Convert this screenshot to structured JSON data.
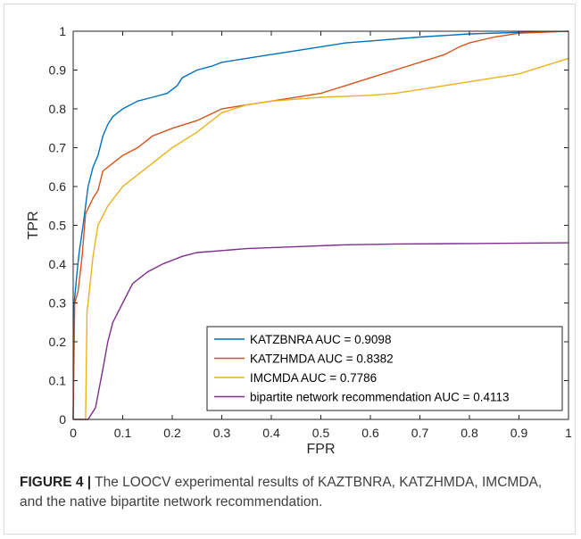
{
  "chart_data": {
    "type": "line",
    "title": "",
    "xlabel": "FPR",
    "ylabel": "TPR",
    "xlim": [
      0,
      1
    ],
    "ylim": [
      0,
      1
    ],
    "xticks": [
      "0",
      "0.1",
      "0.2",
      "0.3",
      "0.4",
      "0.5",
      "0.6",
      "0.7",
      "0.8",
      "0.9",
      "1"
    ],
    "yticks": [
      "0",
      "0.1",
      "0.2",
      "0.3",
      "0.4",
      "0.5",
      "0.6",
      "0.7",
      "0.8",
      "0.9",
      "1"
    ],
    "grid": false,
    "legend_position": "bottom-right",
    "series": [
      {
        "name": "KATZBNRA AUC = 0.9098",
        "color": "#0072BD",
        "points": [
          [
            0,
            0
          ],
          [
            0.002,
            0.3
          ],
          [
            0.008,
            0.38
          ],
          [
            0.012,
            0.43
          ],
          [
            0.02,
            0.5
          ],
          [
            0.03,
            0.6
          ],
          [
            0.04,
            0.65
          ],
          [
            0.05,
            0.68
          ],
          [
            0.06,
            0.73
          ],
          [
            0.07,
            0.76
          ],
          [
            0.08,
            0.78
          ],
          [
            0.1,
            0.8
          ],
          [
            0.13,
            0.82
          ],
          [
            0.16,
            0.83
          ],
          [
            0.19,
            0.84
          ],
          [
            0.21,
            0.86
          ],
          [
            0.22,
            0.88
          ],
          [
            0.25,
            0.9
          ],
          [
            0.28,
            0.91
          ],
          [
            0.3,
            0.92
          ],
          [
            0.35,
            0.93
          ],
          [
            0.4,
            0.94
          ],
          [
            0.45,
            0.95
          ],
          [
            0.5,
            0.96
          ],
          [
            0.55,
            0.97
          ],
          [
            0.6,
            0.975
          ],
          [
            0.7,
            0.985
          ],
          [
            0.8,
            0.993
          ],
          [
            0.9,
            0.997
          ],
          [
            1,
            1
          ]
        ]
      },
      {
        "name": "KATZHMDA AUC = 0.8382",
        "color": "#D95319",
        "points": [
          [
            0,
            0
          ],
          [
            0.003,
            0.3
          ],
          [
            0.01,
            0.33
          ],
          [
            0.018,
            0.42
          ],
          [
            0.025,
            0.53
          ],
          [
            0.04,
            0.57
          ],
          [
            0.05,
            0.59
          ],
          [
            0.06,
            0.64
          ],
          [
            0.08,
            0.66
          ],
          [
            0.1,
            0.68
          ],
          [
            0.13,
            0.7
          ],
          [
            0.16,
            0.73
          ],
          [
            0.2,
            0.75
          ],
          [
            0.25,
            0.77
          ],
          [
            0.3,
            0.8
          ],
          [
            0.35,
            0.81
          ],
          [
            0.4,
            0.82
          ],
          [
            0.5,
            0.84
          ],
          [
            0.55,
            0.86
          ],
          [
            0.6,
            0.88
          ],
          [
            0.65,
            0.9
          ],
          [
            0.7,
            0.92
          ],
          [
            0.75,
            0.94
          ],
          [
            0.78,
            0.96
          ],
          [
            0.8,
            0.97
          ],
          [
            0.85,
            0.985
          ],
          [
            0.9,
            0.995
          ],
          [
            1,
            1
          ]
        ]
      },
      {
        "name": "IMCMDA AUC = 0.7786",
        "color": "#EDB120",
        "points": [
          [
            0,
            0
          ],
          [
            0.025,
            0.0
          ],
          [
            0.028,
            0.28
          ],
          [
            0.03,
            0.3
          ],
          [
            0.04,
            0.42
          ],
          [
            0.05,
            0.5
          ],
          [
            0.07,
            0.55
          ],
          [
            0.1,
            0.6
          ],
          [
            0.13,
            0.63
          ],
          [
            0.16,
            0.66
          ],
          [
            0.2,
            0.7
          ],
          [
            0.25,
            0.74
          ],
          [
            0.3,
            0.79
          ],
          [
            0.35,
            0.81
          ],
          [
            0.4,
            0.82
          ],
          [
            0.5,
            0.83
          ],
          [
            0.6,
            0.835
          ],
          [
            0.65,
            0.84
          ],
          [
            0.7,
            0.85
          ],
          [
            0.8,
            0.87
          ],
          [
            0.9,
            0.89
          ],
          [
            1,
            0.93
          ]
        ]
      },
      {
        "name": "bipartite network recommendation AUC = 0.4113",
        "color": "#7E2F8E",
        "points": [
          [
            0,
            0
          ],
          [
            0.03,
            0.0
          ],
          [
            0.045,
            0.03
          ],
          [
            0.06,
            0.13
          ],
          [
            0.07,
            0.2
          ],
          [
            0.08,
            0.25
          ],
          [
            0.1,
            0.3
          ],
          [
            0.12,
            0.35
          ],
          [
            0.15,
            0.38
          ],
          [
            0.18,
            0.4
          ],
          [
            0.22,
            0.42
          ],
          [
            0.25,
            0.43
          ],
          [
            0.3,
            0.435
          ],
          [
            0.35,
            0.44
          ],
          [
            0.45,
            0.445
          ],
          [
            0.55,
            0.45
          ],
          [
            0.65,
            0.452
          ],
          [
            0.8,
            0.453
          ],
          [
            1,
            0.455
          ]
        ]
      }
    ]
  },
  "caption": {
    "label": "FIGURE 4 |",
    "text": " The LOOCV experimental results of KAZTBNRA, KATZHMDA, IMCMDA, and the native bipartite network recommendation."
  }
}
